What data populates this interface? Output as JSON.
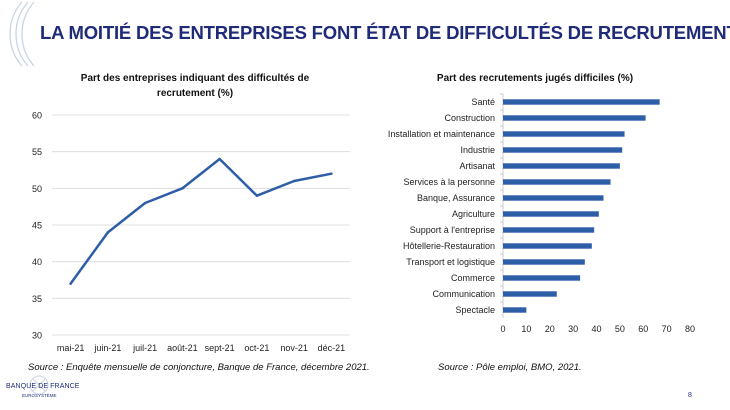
{
  "slide": {
    "title": "LA MOITIÉ DES ENTREPRISES FONT ÉTAT DE DIFFICULTÉS DE RECRUTEMENT",
    "page_number": "8",
    "logo_text": "BANQUE DE FRANCE",
    "logo_subtext": "EUROSYSTÈME",
    "accent_color": "#1f2a78",
    "series_color": "#2e5ea7"
  },
  "left": {
    "title_line1": "Part des entreprises indiquant des difficultés de",
    "title_line2": "recrutement (%)",
    "source": "Source : Enquête mensuelle de conjoncture, Banque de France, décembre 2021."
  },
  "right": {
    "title": "Part des recrutements jugés difficiles (%)",
    "source": "Source : Pôle emploi, BMO, 2021."
  },
  "chart_data": [
    {
      "type": "line",
      "title": "Part des entreprises indiquant des difficultés de recrutement (%)",
      "x": [
        "mai-21",
        "juin-21",
        "juil-21",
        "août-21",
        "sept-21",
        "oct-21",
        "nov-21",
        "déc-21"
      ],
      "values": [
        37,
        44,
        48,
        50,
        54,
        49,
        51,
        52
      ],
      "ylim": [
        30,
        60
      ],
      "yticks": [
        30,
        35,
        40,
        45,
        50,
        55,
        60
      ],
      "grid": true,
      "color": "#2e5ea7"
    },
    {
      "type": "bar",
      "orientation": "horizontal",
      "title": "Part des recrutements jugés difficiles (%)",
      "categories": [
        "Santé",
        "Construction",
        "Installation et maintenance",
        "Industrie",
        "Artisanat",
        "Services à la personne",
        "Banque, Assurance",
        "Agriculture",
        "Support à l'entreprise",
        "Hôtellerie-Restauration",
        "Transport et logistique",
        "Commerce",
        "Communication",
        "Spectacle"
      ],
      "values": [
        67,
        61,
        52,
        51,
        50,
        46,
        43,
        41,
        39,
        38,
        35,
        33,
        23,
        10
      ],
      "xlim": [
        0,
        80
      ],
      "xticks": [
        0,
        10,
        20,
        30,
        40,
        50,
        60,
        70,
        80
      ],
      "grid": false,
      "color": "#2e5ea7"
    }
  ]
}
